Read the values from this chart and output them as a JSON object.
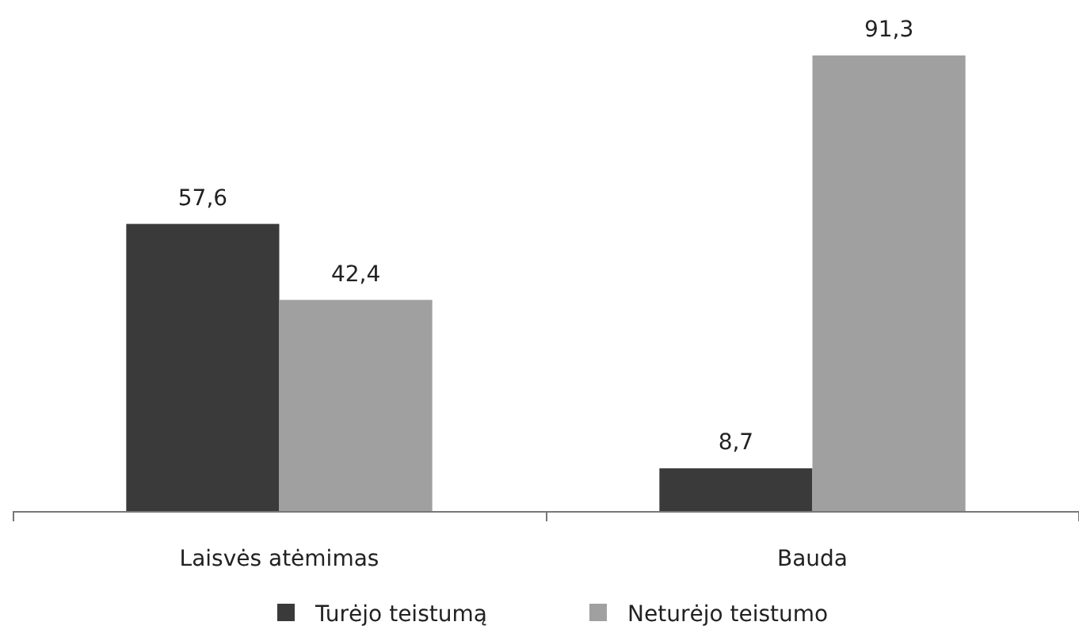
{
  "chart_data": {
    "type": "bar",
    "categories": [
      "Laisvės atėmimas",
      "Bauda"
    ],
    "series": [
      {
        "name": "Turėjo teistumą",
        "color": "#3a3a3a",
        "values": [
          57.6,
          8.7
        ],
        "value_labels": [
          "57,6",
          "8,7"
        ]
      },
      {
        "name": "Neturėjo teistumo",
        "color": "#a0a0a0",
        "values": [
          42.4,
          91.3
        ],
        "value_labels": [
          "42,4",
          "91,3"
        ]
      }
    ],
    "legend": "bottom"
  }
}
